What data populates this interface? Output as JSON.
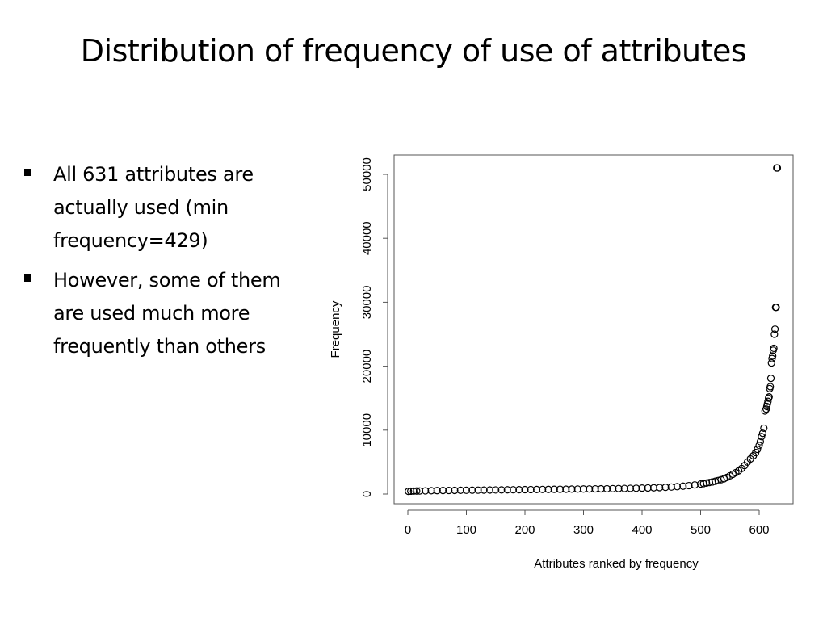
{
  "slide": {
    "title": "Distribution of frequency of use of attributes",
    "bullets": [
      "All 631 attributes are actually used (min frequency=429)",
      "However, some of them are used much more frequently than others"
    ]
  },
  "chart_data": {
    "type": "scatter",
    "title": "",
    "xlabel": "Attributes ranked by frequency",
    "ylabel": "Frequency",
    "xlim": [
      0,
      631
    ],
    "ylim": [
      0,
      51000
    ],
    "xticks": [
      0,
      100,
      200,
      300,
      400,
      500,
      600
    ],
    "yticks": [
      0,
      10000,
      20000,
      30000,
      40000,
      50000
    ],
    "grid": false,
    "legend": "none",
    "marker": "open-circle",
    "color": "#000000",
    "x": [
      1,
      5,
      10,
      15,
      20,
      30,
      40,
      50,
      60,
      70,
      80,
      90,
      100,
      110,
      120,
      130,
      140,
      150,
      160,
      170,
      180,
      190,
      200,
      210,
      220,
      230,
      240,
      250,
      260,
      270,
      280,
      290,
      300,
      310,
      320,
      330,
      340,
      350,
      360,
      370,
      380,
      390,
      400,
      410,
      420,
      430,
      440,
      450,
      460,
      470,
      480,
      490,
      500,
      505,
      510,
      515,
      520,
      525,
      530,
      535,
      540,
      545,
      550,
      555,
      560,
      565,
      570,
      575,
      580,
      585,
      590,
      594,
      597,
      600,
      602,
      604,
      606,
      608,
      610,
      612,
      613,
      614,
      615,
      616,
      617,
      618,
      619,
      620,
      621,
      622,
      623,
      624,
      625,
      626,
      627,
      628,
      629,
      630,
      631
    ],
    "y": [
      429,
      450,
      460,
      470,
      480,
      500,
      520,
      540,
      550,
      560,
      570,
      580,
      590,
      600,
      610,
      620,
      630,
      640,
      650,
      660,
      670,
      680,
      690,
      700,
      710,
      720,
      730,
      740,
      750,
      760,
      770,
      780,
      790,
      800,
      810,
      820,
      830,
      845,
      860,
      875,
      890,
      910,
      930,
      955,
      980,
      1010,
      1050,
      1100,
      1160,
      1230,
      1320,
      1430,
      1560,
      1640,
      1720,
      1810,
      1900,
      2000,
      2120,
      2250,
      2400,
      2600,
      2850,
      3100,
      3350,
      3650,
      4000,
      4450,
      5000,
      5500,
      6000,
      6500,
      7000,
      7600,
      8200,
      9000,
      9500,
      10300,
      13000,
      13300,
      13700,
      14100,
      14500,
      15000,
      15200,
      16500,
      16800,
      18100,
      20500,
      21200,
      21600,
      22500,
      22800,
      25000,
      25800,
      29200,
      29200,
      51000,
      51000
    ]
  }
}
